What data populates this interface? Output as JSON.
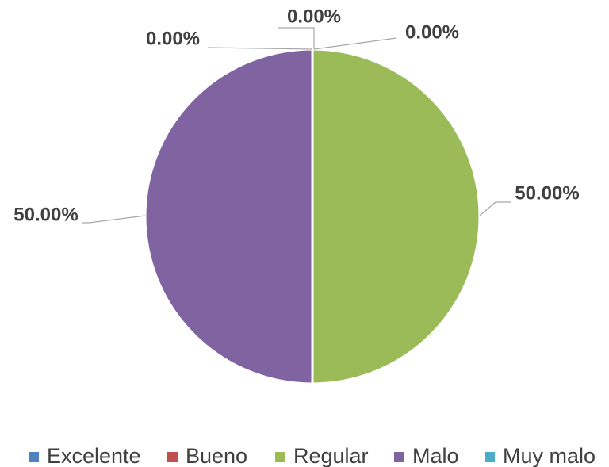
{
  "chart_data": {
    "type": "pie",
    "categories": [
      "Excelente",
      "Bueno",
      "Regular",
      "Malo",
      "Muy malo"
    ],
    "values": [
      0,
      0,
      50,
      50,
      0
    ],
    "value_labels": [
      "0.00%",
      "0.00%",
      "50.00%",
      "50.00%",
      "0.00%"
    ],
    "colors": [
      "#4f81bd",
      "#c0504d",
      "#9bbb59",
      "#8064a2",
      "#4bacc6"
    ],
    "legend": "bottom"
  }
}
